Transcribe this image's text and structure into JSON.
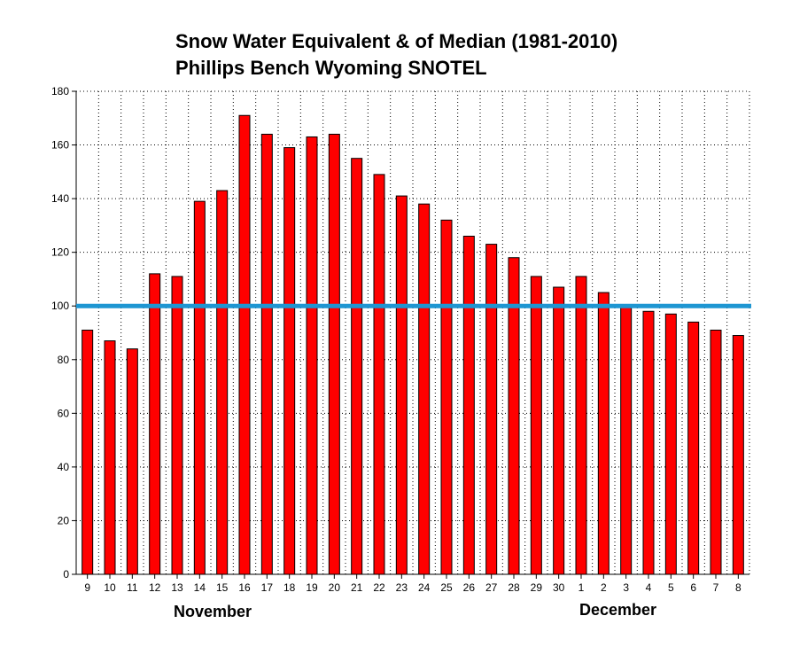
{
  "chart_data": {
    "type": "bar",
    "title": "Snow Water Equivalent & of Median (1981-2010)",
    "subtitle": "Phillips Bench Wyoming SNOTEL",
    "categories": [
      "9",
      "10",
      "11",
      "12",
      "13",
      "14",
      "15",
      "16",
      "17",
      "18",
      "19",
      "20",
      "21",
      "22",
      "23",
      "24",
      "25",
      "26",
      "27",
      "28",
      "29",
      "30",
      "1",
      "2",
      "3",
      "4",
      "5",
      "6",
      "7",
      "8"
    ],
    "values": [
      91,
      87,
      84,
      112,
      111,
      139,
      143,
      171,
      164,
      159,
      163,
      164,
      155,
      149,
      141,
      138,
      132,
      126,
      123,
      118,
      111,
      107,
      111,
      105,
      100,
      98,
      97,
      94,
      91,
      89
    ],
    "ylim": [
      0,
      180
    ],
    "yticks": [
      0,
      20,
      40,
      60,
      80,
      100,
      120,
      140,
      160,
      180
    ],
    "reference_line": 100,
    "month_labels": [
      "November",
      "December"
    ],
    "grid": true,
    "colors": {
      "bar": "#ff0000",
      "bar_stroke": "#000000",
      "reference": "#1e96d2",
      "grid": "#000000"
    }
  }
}
